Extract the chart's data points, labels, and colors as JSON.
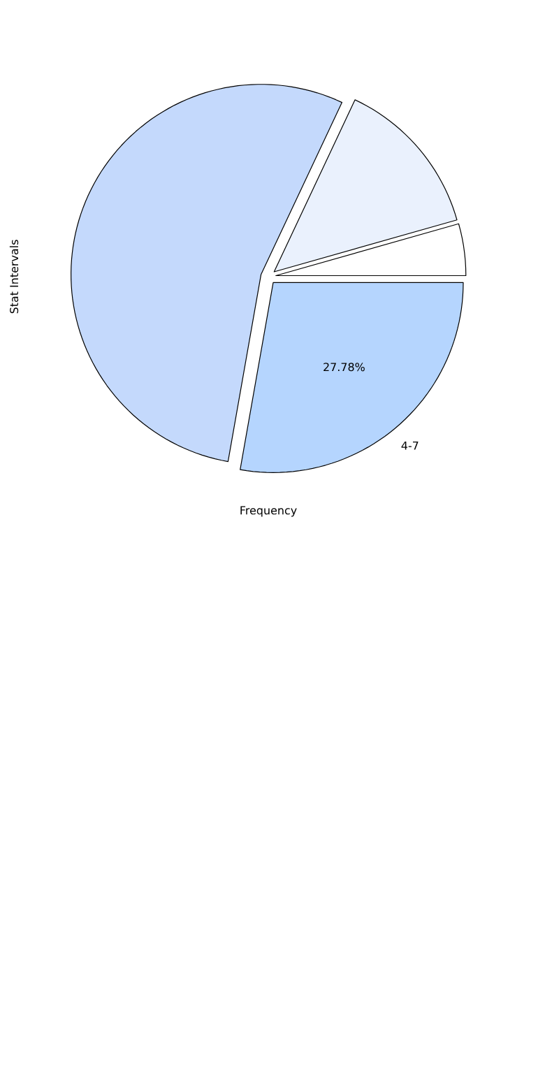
{
  "chart_data": {
    "type": "pie",
    "xlabel": "Frequency",
    "ylabel": "Stat Intervals",
    "categories": [
      null,
      null,
      null,
      "4-7"
    ],
    "values": [
      4.4,
      13.6,
      54.22,
      27.78
    ],
    "colors": [
      "#ffffff",
      "#eaf1fd",
      "#c4d9fc",
      "#b5d5fe"
    ],
    "value_labels": [
      null,
      null,
      null,
      "27.78%"
    ]
  }
}
